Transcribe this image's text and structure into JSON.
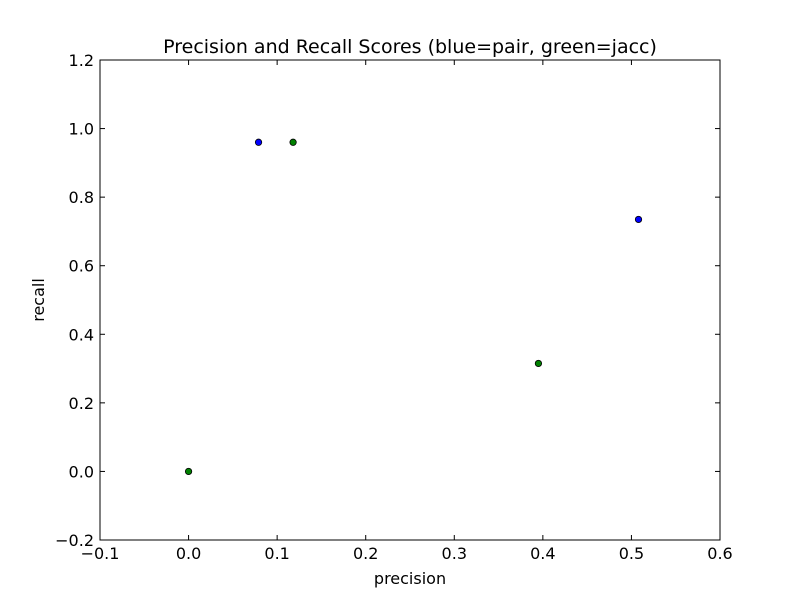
{
  "chart_data": {
    "type": "scatter",
    "title": "Precision and Recall Scores (blue=pair, green=jacc)",
    "xlabel": "precision",
    "ylabel": "recall",
    "xlim": [
      -0.1,
      0.6
    ],
    "ylim": [
      -0.2,
      1.2
    ],
    "xticks": [
      -0.1,
      0.0,
      0.1,
      0.2,
      0.3,
      0.4,
      0.5,
      0.6
    ],
    "yticks": [
      -0.2,
      0.0,
      0.2,
      0.4,
      0.6,
      0.8,
      1.0,
      1.2
    ],
    "xtick_labels": [
      "−0.1",
      "0.0",
      "0.1",
      "0.2",
      "0.3",
      "0.4",
      "0.5",
      "0.6"
    ],
    "ytick_labels": [
      "−0.2",
      "0.0",
      "0.2",
      "0.4",
      "0.6",
      "0.8",
      "1.0",
      "1.2"
    ],
    "grid": false,
    "series": [
      {
        "color": "#0000ff",
        "points": [
          {
            "x": 0.079,
            "y": 0.96
          },
          {
            "x": 0.508,
            "y": 0.735
          }
        ]
      },
      {
        "color": "#008000",
        "points": [
          {
            "x": 0.0,
            "y": 0.0
          },
          {
            "x": 0.118,
            "y": 0.96
          },
          {
            "x": 0.395,
            "y": 0.315
          }
        ]
      }
    ]
  }
}
